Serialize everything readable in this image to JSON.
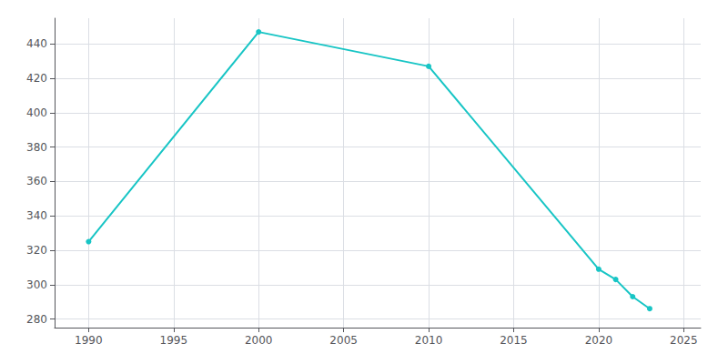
{
  "chart_data": {
    "type": "line",
    "x": [
      1990,
      2000,
      2010,
      2020,
      2021,
      2022,
      2023
    ],
    "values": [
      325,
      447,
      427,
      309,
      303,
      293,
      286
    ],
    "color": "#18C5C5",
    "marker": "circle",
    "xlim": [
      1988,
      2026
    ],
    "xticks": [
      1990,
      1995,
      2000,
      2005,
      2010,
      2015,
      2020,
      2025
    ],
    "ylim": [
      275,
      455
    ],
    "yticks": [
      280,
      300,
      320,
      340,
      360,
      380,
      400,
      420,
      440
    ],
    "grid": true
  }
}
